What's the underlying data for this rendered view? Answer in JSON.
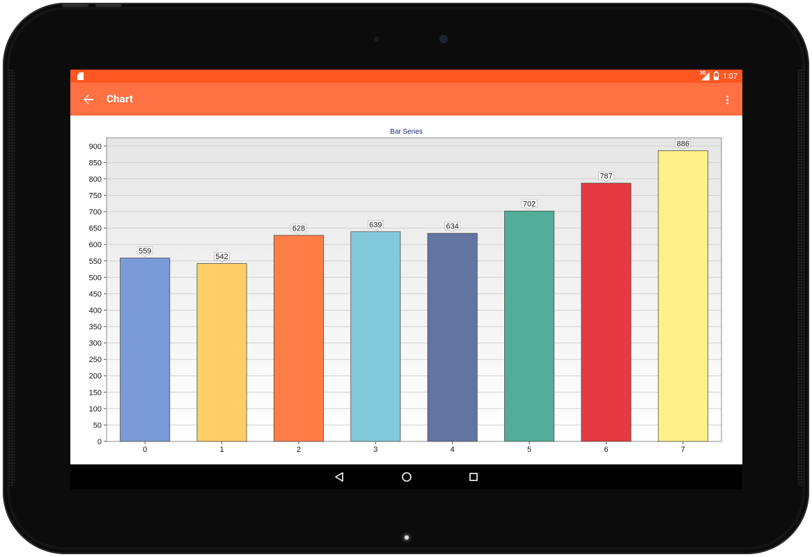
{
  "status_bar": {
    "time": "1:07",
    "network_label": "3G",
    "icons": [
      "sd-card-icon",
      "signal-icon",
      "battery-icon"
    ]
  },
  "app_bar": {
    "title": "Chart",
    "back_icon": "arrow-back-icon",
    "menu_icon": "overflow-menu-icon"
  },
  "colors": {
    "status_bar": "#ff5722",
    "app_bar": "#ff7043",
    "title_text": "#1a237e"
  },
  "chart_data": {
    "type": "bar",
    "title": "Bar Series",
    "xlabel": "",
    "ylabel": "",
    "categories": [
      "0",
      "1",
      "2",
      "3",
      "4",
      "5",
      "6",
      "7"
    ],
    "values": [
      559,
      542,
      628,
      639,
      634,
      702,
      787,
      886
    ],
    "bar_colors": [
      "#7a9bd6",
      "#ffce66",
      "#ff7d47",
      "#82cadb",
      "#6275a0",
      "#52ae98",
      "#e63a42",
      "#fff08a"
    ],
    "ylim": [
      0,
      925
    ],
    "yticks": [
      0,
      50,
      100,
      150,
      200,
      250,
      300,
      350,
      400,
      450,
      500,
      550,
      600,
      650,
      700,
      750,
      800,
      850,
      900
    ],
    "grid": true,
    "data_labels": true
  },
  "nav_bar": {
    "icons": [
      "nav-back-icon",
      "nav-home-icon",
      "nav-recents-icon"
    ]
  }
}
